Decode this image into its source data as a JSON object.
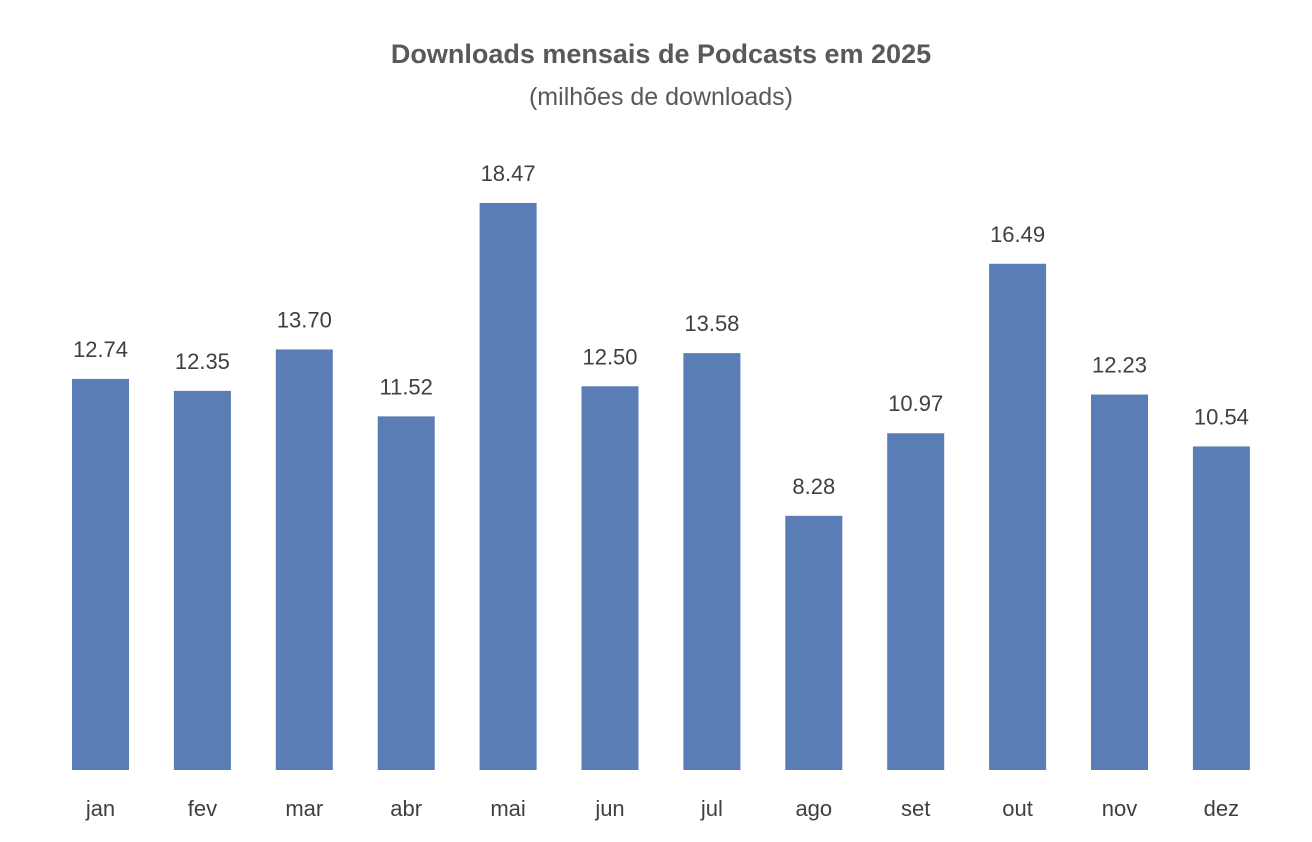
{
  "chart_data": {
    "type": "bar",
    "title": "Downloads mensais de Podcasts em 2025",
    "subtitle": "(milhões de downloads)",
    "categories": [
      "jan",
      "fev",
      "mar",
      "abr",
      "mai",
      "jun",
      "jul",
      "ago",
      "set",
      "out",
      "nov",
      "dez"
    ],
    "values": [
      12.74,
      12.35,
      13.7,
      11.52,
      18.47,
      12.5,
      13.58,
      8.28,
      10.97,
      16.49,
      12.23,
      10.54
    ],
    "data_labels": [
      "12.74",
      "12.35",
      "13.70",
      "11.52",
      "18.47",
      "12.50",
      "13.58",
      "8.28",
      "10.97",
      "16.49",
      "12.23",
      "10.54"
    ],
    "xlabel": "",
    "ylabel": "",
    "grid": false,
    "legend": "none",
    "y_axis_visible": false,
    "bar_color": "#5B7DB5",
    "text_color": "#404040",
    "title_color": "#595959"
  }
}
